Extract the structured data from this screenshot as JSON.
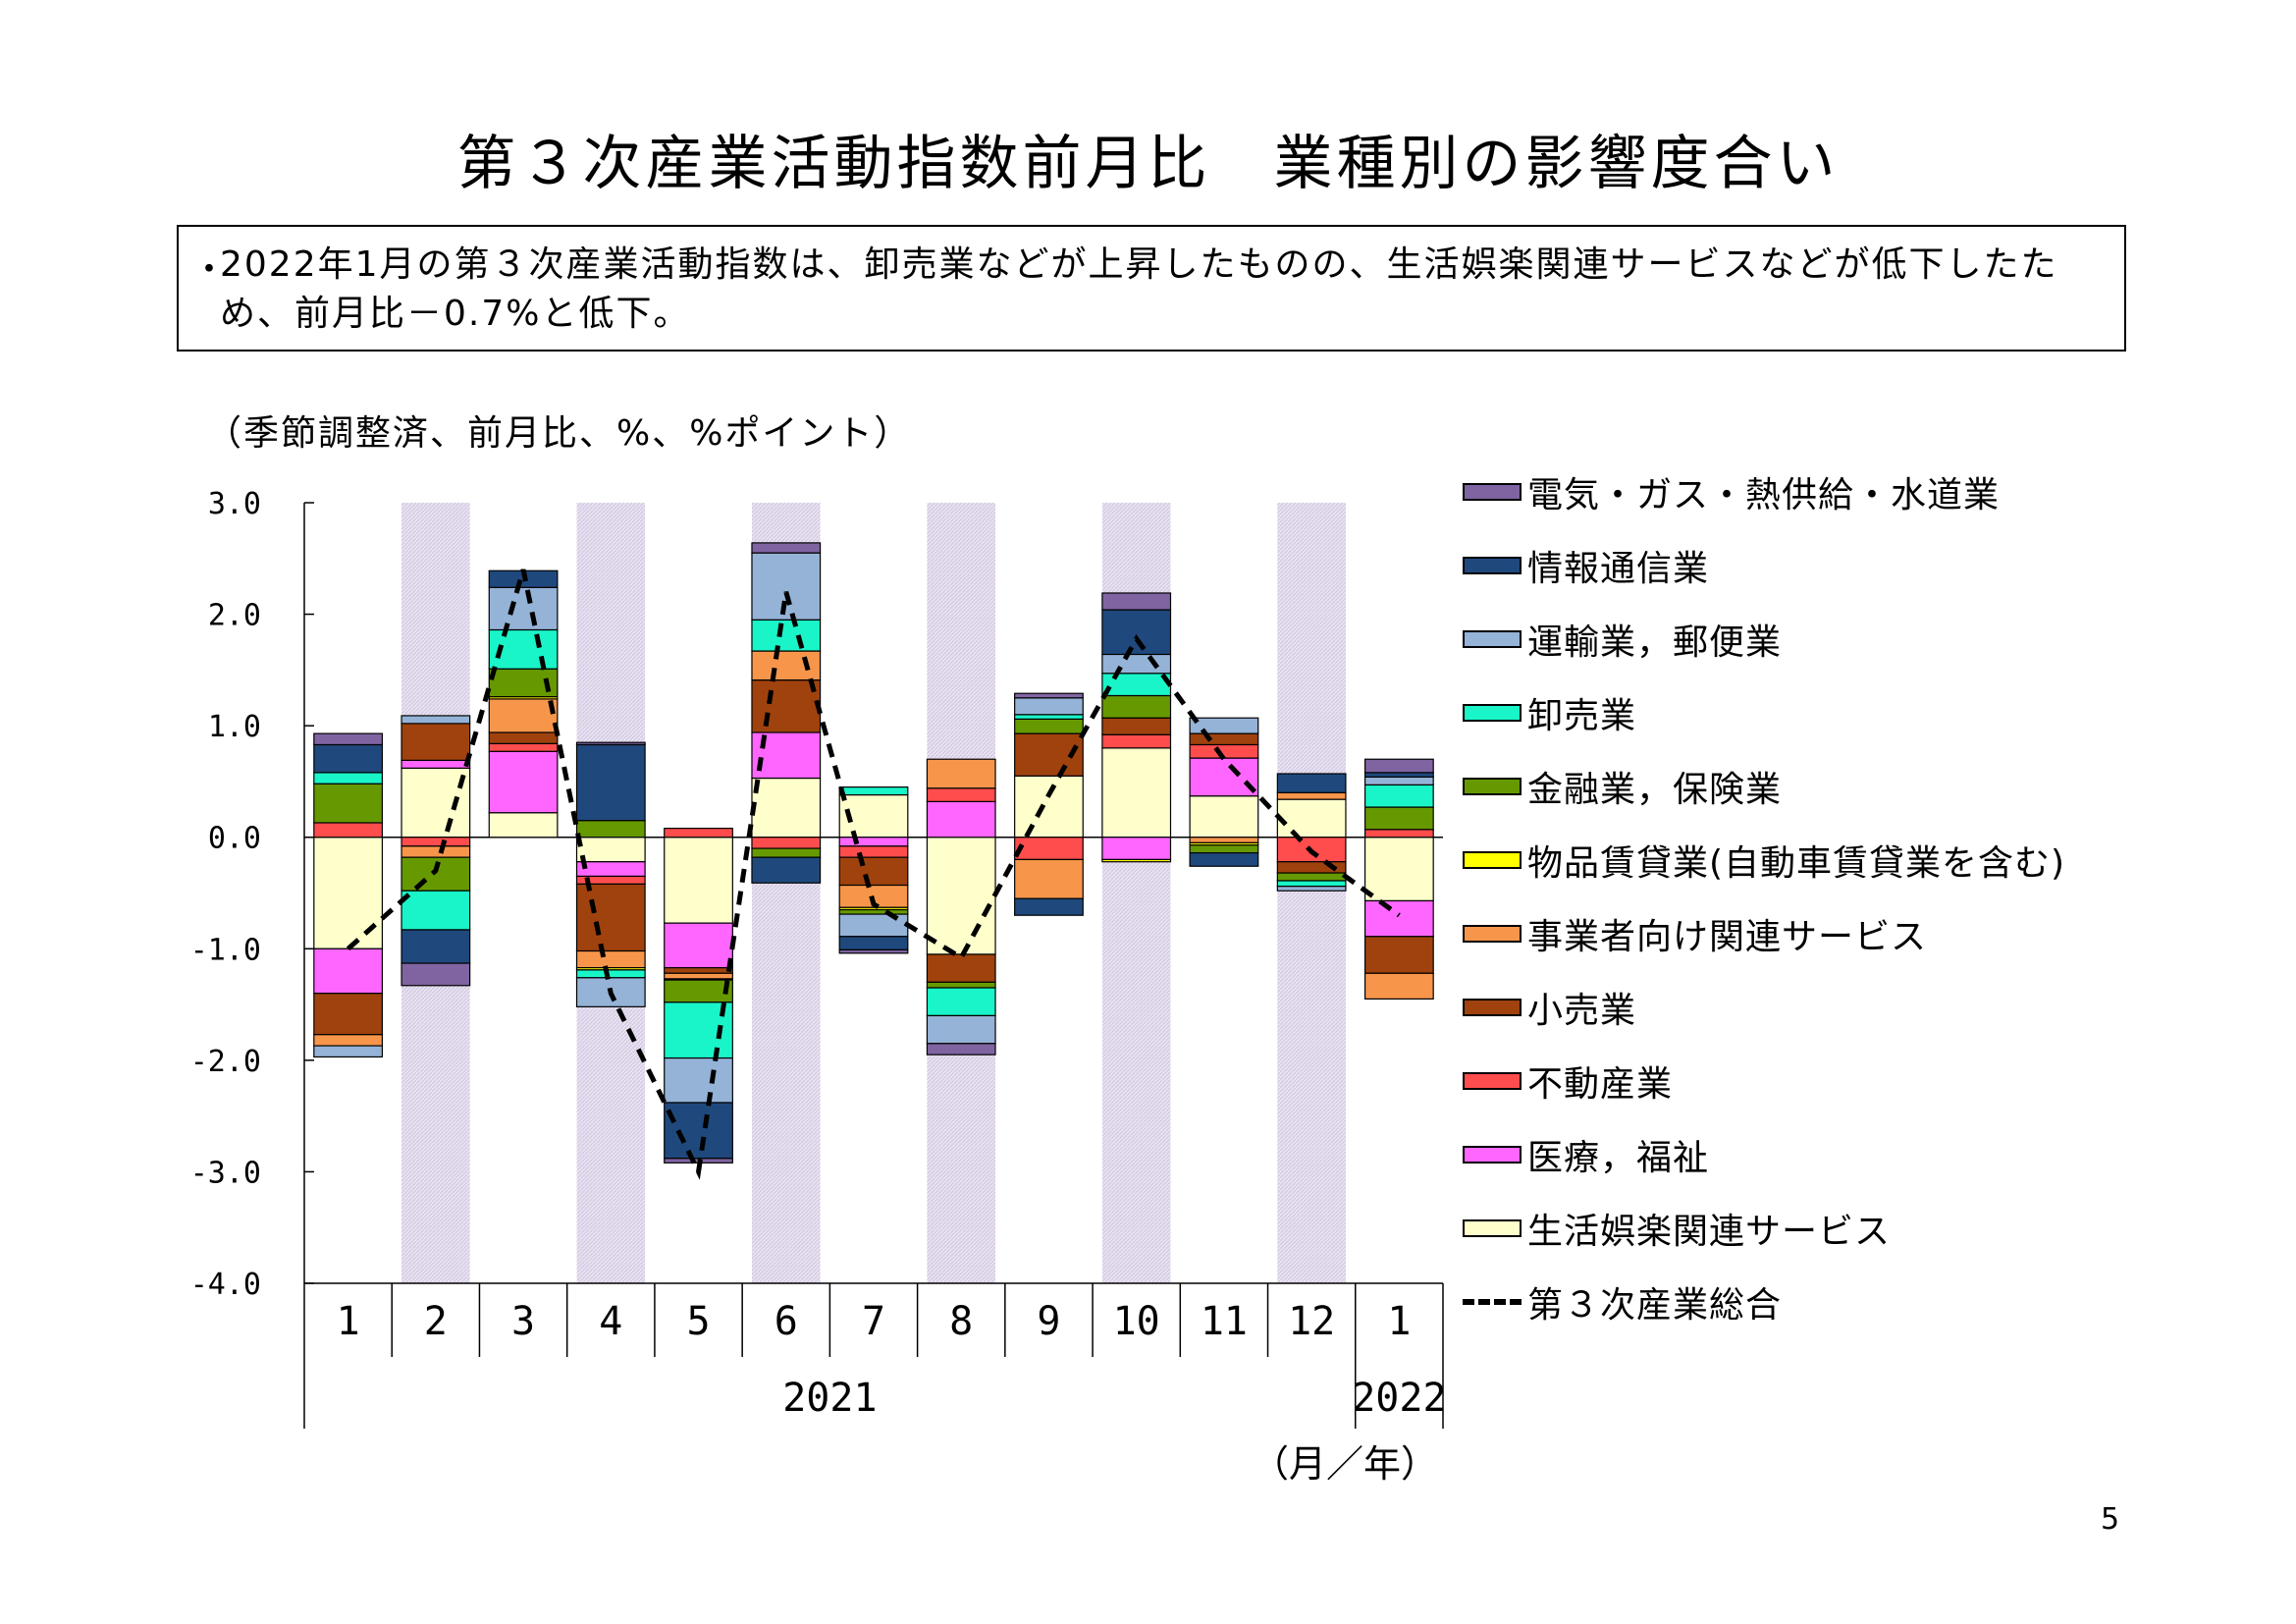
{
  "page": {
    "title": "第３次産業活動指数前月比　業種別の影響度合い",
    "summary_bullet": "・",
    "summary": "2022年1月の第３次産業活動指数は、卸売業などが上昇したものの、生活娯楽関連サービスなどが低下したため、前月比－0.7%と低下。",
    "unit_note": "（季節調整済、前月比、%、%ポイント）",
    "x_unit": "（月／年）",
    "page_number": "5"
  },
  "chart_data": {
    "type": "bar",
    "stacked": true,
    "ylim": [
      -4.0,
      3.0
    ],
    "y_ticks": [
      "3.0",
      "2.0",
      "1.0",
      "0.0",
      "-1.0",
      "-2.0",
      "-3.0",
      "-4.0"
    ],
    "y_tick_values": [
      3,
      2,
      1,
      0,
      -1,
      -2,
      -3,
      -4
    ],
    "categories": [
      "1",
      "2",
      "3",
      "4",
      "5",
      "6",
      "7",
      "8",
      "9",
      "10",
      "11",
      "12",
      "1"
    ],
    "year_groups": [
      {
        "label": "2021",
        "start": 0,
        "end": 11
      },
      {
        "label": "2022",
        "start": 12,
        "end": 12
      }
    ],
    "shaded_columns": [
      1,
      3,
      5,
      7,
      9,
      11
    ],
    "legend_position": "right",
    "series": [
      {
        "name": "生活娯楽関連サービス",
        "color": "#FFFFCC",
        "values": [
          -1.0,
          0.62,
          0.22,
          -0.22,
          -0.77,
          0.53,
          0.38,
          -1.05,
          0.55,
          0.8,
          0.37,
          0.34,
          -0.57
        ]
      },
      {
        "name": "医療，福祉",
        "color": "#FF66FF",
        "values": [
          -0.4,
          0.07,
          0.55,
          -0.13,
          -0.4,
          0.41,
          -0.08,
          0.32,
          0.0,
          -0.2,
          0.34,
          0.0,
          -0.32
        ]
      },
      {
        "name": "不動産業",
        "color": "#FF4D4D",
        "values": [
          0.13,
          -0.08,
          0.07,
          -0.07,
          0.08,
          -0.1,
          -0.1,
          0.12,
          -0.2,
          0.12,
          0.12,
          -0.22,
          0.07
        ]
      },
      {
        "name": "小売業",
        "color": "#A0420E",
        "values": [
          -0.37,
          0.33,
          0.1,
          -0.6,
          -0.05,
          0.47,
          -0.25,
          -0.25,
          0.38,
          0.15,
          0.1,
          -0.1,
          -0.33
        ]
      },
      {
        "name": "事業者向け関連サービス",
        "color": "#F7964B",
        "values": [
          -0.1,
          -0.1,
          0.3,
          -0.15,
          -0.05,
          0.26,
          -0.2,
          0.26,
          -0.35,
          0.0,
          -0.05,
          0.06,
          -0.23
        ]
      },
      {
        "name": "物品賃貸業(自動車賃貸業を含む)",
        "color": "#FFFF00",
        "values": [
          0.0,
          0.0,
          0.02,
          -0.02,
          -0.01,
          0.0,
          -0.02,
          0.0,
          0.0,
          -0.02,
          -0.02,
          0.0,
          0.0
        ]
      },
      {
        "name": "金融業，保険業",
        "color": "#669900",
        "values": [
          0.35,
          -0.3,
          0.25,
          0.15,
          -0.2,
          -0.08,
          -0.04,
          -0.05,
          0.13,
          0.2,
          -0.07,
          -0.07,
          0.2
        ]
      },
      {
        "name": "卸売業",
        "color": "#19F5C8",
        "values": [
          0.1,
          -0.35,
          0.35,
          -0.07,
          -0.5,
          0.28,
          0.07,
          -0.25,
          0.04,
          0.2,
          0.0,
          -0.05,
          0.2
        ]
      },
      {
        "name": "運輸業，郵便業",
        "color": "#95B3D7",
        "values": [
          -0.1,
          0.07,
          0.38,
          -0.26,
          -0.4,
          0.6,
          -0.2,
          -0.25,
          0.15,
          0.17,
          0.14,
          -0.04,
          0.07
        ]
      },
      {
        "name": "情報通信業",
        "color": "#1F497D",
        "values": [
          0.25,
          -0.3,
          0.15,
          0.68,
          -0.5,
          -0.23,
          -0.12,
          0.0,
          -0.15,
          0.4,
          -0.12,
          0.17,
          0.04
        ]
      },
      {
        "name": "電気・ガス・熱供給・水道業",
        "color": "#8064A2",
        "values": [
          0.1,
          -0.2,
          0.0,
          0.02,
          -0.04,
          0.09,
          -0.03,
          -0.1,
          0.04,
          0.15,
          0.0,
          0.0,
          0.12
        ]
      }
    ],
    "total": {
      "name": "第３次産業総合",
      "values": [
        -1.0,
        -0.3,
        2.4,
        -1.4,
        -3.0,
        2.2,
        -0.6,
        -1.08,
        0.38,
        1.78,
        0.7,
        -0.13,
        -0.7
      ]
    }
  }
}
